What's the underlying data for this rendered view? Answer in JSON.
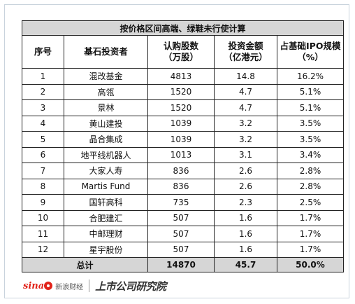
{
  "table": {
    "title": "按价格区间高端、绿鞋未行使计算",
    "headers": [
      [
        "序号"
      ],
      [
        "基石投资者"
      ],
      [
        "认购股数",
        "（万股）"
      ],
      [
        "投资金额",
        "（亿港元）"
      ],
      [
        "占基础IPO规模",
        "（%）"
      ]
    ],
    "rows": [
      [
        "1",
        "混改基金",
        "4813",
        "14.8",
        "16.2%"
      ],
      [
        "2",
        "高瓴",
        "1520",
        "4.7",
        "5.1%"
      ],
      [
        "3",
        "景林",
        "1520",
        "4.7",
        "5.1%"
      ],
      [
        "4",
        "黄山建投",
        "1039",
        "3.2",
        "3.5%"
      ],
      [
        "5",
        "晶合集成",
        "1039",
        "3.2",
        "3.5%"
      ],
      [
        "6",
        "地平线机器人",
        "1013",
        "3.1",
        "3.4%"
      ],
      [
        "7",
        "大家人寿",
        "836",
        "2.6",
        "2.8%"
      ],
      [
        "8",
        "Martis Fund",
        "836",
        "2.6",
        "2.8%"
      ],
      [
        "9",
        "国轩高科",
        "735",
        "2.3",
        "2.5%"
      ],
      [
        "10",
        "合肥建汇",
        "507",
        "1.6",
        "1.7%"
      ],
      [
        "11",
        "中邮理财",
        "507",
        "1.6",
        "1.7%"
      ],
      [
        "12",
        "星宇股份",
        "507",
        "1.6",
        "1.7%"
      ]
    ],
    "total": {
      "label": "总计",
      "shares": "14870",
      "amount": "45.7",
      "percent": "50.0%"
    }
  },
  "footer": {
    "brand_sina": "sina",
    "brand_sina_cn": "新浪财经",
    "brand_research": "上市公司研究院"
  },
  "colors": {
    "header_fill": "#d6d6d6",
    "border": "#222222",
    "sina_red": "#e2231a"
  }
}
